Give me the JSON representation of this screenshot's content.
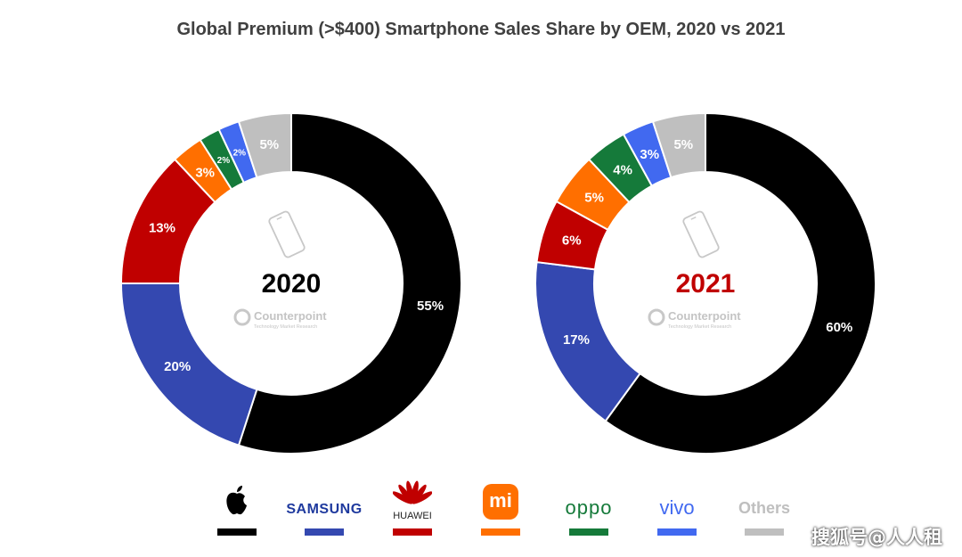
{
  "colors": {
    "Apple": "#000000",
    "Samsung": "#3448b0",
    "Huawei": "#c00000",
    "Xiaomi": "#ff6f00",
    "Oppo": "#157a3a",
    "Vivo": "#4169f0",
    "Others": "#bfbfbf",
    "year_2020": "#000000",
    "year_2021": "#c00000"
  },
  "chart_data": {
    "type": "pie",
    "variant": "donut",
    "title": "Global Premium (>$400) Smartphone Sales Share by OEM, 2020 vs 2021",
    "categories": [
      "Apple",
      "Samsung",
      "Huawei",
      "Xiaomi",
      "Oppo",
      "Vivo",
      "Others"
    ],
    "series": [
      {
        "name": "2020",
        "values": [
          55,
          20,
          13,
          3,
          2,
          2,
          5
        ],
        "labels": [
          "55%",
          "20%",
          "13%",
          "3%",
          "2%",
          "2%",
          "5%"
        ]
      },
      {
        "name": "2021",
        "values": [
          60,
          17,
          6,
          5,
          4,
          3,
          5
        ],
        "labels": [
          "60%",
          "17%",
          "6%",
          "5%",
          "4%",
          "3%",
          "5%"
        ]
      }
    ],
    "center_note": {
      "brand": "Counterpoint",
      "tagline": "Technology Market Research"
    }
  },
  "legend": {
    "items": [
      {
        "key": "Apple",
        "label": "",
        "icon": "apple-logo-icon"
      },
      {
        "key": "Samsung",
        "label": "SAMSUNG"
      },
      {
        "key": "Huawei",
        "label": "HUAWEI",
        "icon": "huawei-flower-icon"
      },
      {
        "key": "Xiaomi",
        "label": "mi",
        "icon": "xiaomi-logo-icon"
      },
      {
        "key": "Oppo",
        "label": "oppo"
      },
      {
        "key": "Vivo",
        "label": "vivo"
      },
      {
        "key": "Others",
        "label": "Others"
      }
    ]
  },
  "watermark": "搜狐号@人人租"
}
